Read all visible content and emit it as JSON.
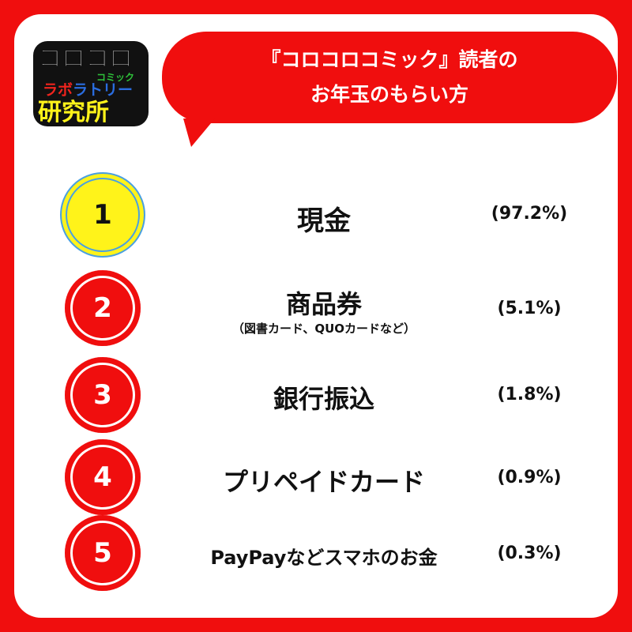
{
  "logo": {
    "line1": "コロコロ",
    "line2": "コミック",
    "line3": "ラボラトリー",
    "line4": "研究所"
  },
  "header": {
    "title_line1": "『コロコロコミック』読者の",
    "title_line2": "お年玉のもらい方"
  },
  "colors": {
    "brand_red": "#f00e0e",
    "rank1_yellow": "#fff31a",
    "rank1_outline": "#4aa0e0"
  },
  "rankings": [
    {
      "rank": "1",
      "label": "現金",
      "note": "",
      "percent": "(97.2%)"
    },
    {
      "rank": "2",
      "label": "商品券",
      "note": "（図書カード、QUOカードなど）",
      "percent": "(5.1%)"
    },
    {
      "rank": "3",
      "label": "銀行振込",
      "note": "",
      "percent": "(1.8%)"
    },
    {
      "rank": "4",
      "label": "プリペイドカード",
      "note": "",
      "percent": "(0.9%)"
    },
    {
      "rank": "5",
      "label": "PayPayなどスマホのお金",
      "note": "",
      "percent": "(0.3%)"
    }
  ]
}
